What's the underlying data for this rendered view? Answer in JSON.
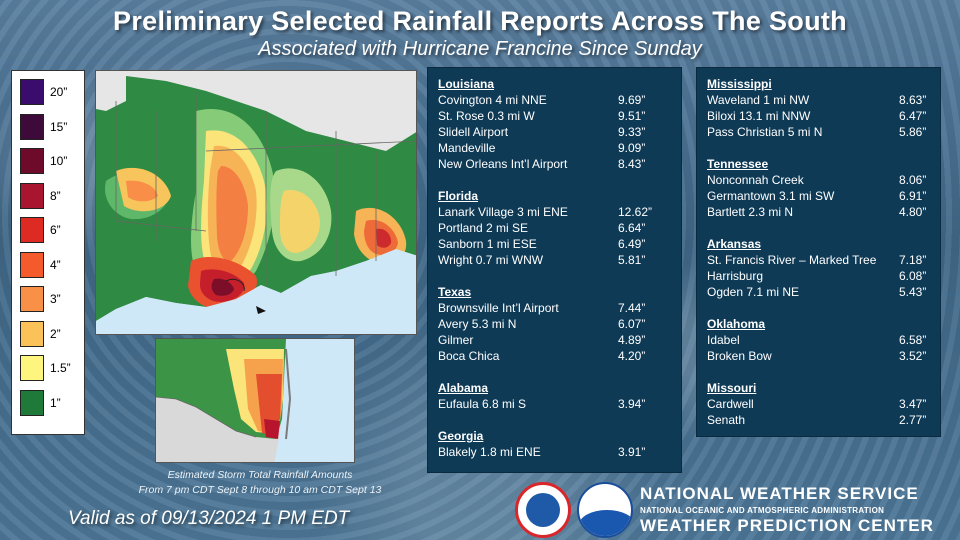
{
  "title": "Preliminary Selected Rainfall Reports Across The South",
  "subtitle": "Associated with Hurricane Francine Since Sunday",
  "legend": [
    {
      "label": "20”",
      "color": "#3a0c6e"
    },
    {
      "label": "15”",
      "color": "#3d0a3a"
    },
    {
      "label": "10”",
      "color": "#6e0b2a"
    },
    {
      "label": "8”",
      "color": "#a9142f"
    },
    {
      "label": "6”",
      "color": "#dd2a22"
    },
    {
      "label": "4”",
      "color": "#f55a2c"
    },
    {
      "label": "3”",
      "color": "#f89048"
    },
    {
      "label": "2”",
      "color": "#fbc25a"
    },
    {
      "label": "1.5”",
      "color": "#fdf57e"
    },
    {
      "label": "1”",
      "color": "#1f7a3a"
    }
  ],
  "caption": {
    "line1": "Estimated Storm Total Rainfall Amounts",
    "line2": "From 7 pm CDT Sept 8 through 10 am CDT Sept 13"
  },
  "valid": "Valid as of 09/13/2024  1 PM EDT",
  "left_panel": [
    {
      "state": "Louisiana",
      "rows": [
        {
          "site": "Covington 4 mi NNE",
          "value": "9.69”"
        },
        {
          "site": "St. Rose 0.3 mi W",
          "value": "9.51”"
        },
        {
          "site": "Slidell Airport",
          "value": "9.33”"
        },
        {
          "site": "Mandeville",
          "value": "9.09”"
        },
        {
          "site": "New Orleans Int’l Airport",
          "value": "8.43”"
        }
      ]
    },
    {
      "state": "Florida",
      "rows": [
        {
          "site": "Lanark Village 3 mi ENE",
          "value": "12.62”"
        },
        {
          "site": "Portland 2 mi SE",
          "value": "6.64”"
        },
        {
          "site": "Sanborn 1 mi ESE",
          "value": "6.49”"
        },
        {
          "site": "Wright 0.7 mi WNW",
          "value": "5.81”"
        }
      ]
    },
    {
      "state": "Texas",
      "rows": [
        {
          "site": "Brownsville Int’l Airport",
          "value": "7.44”"
        },
        {
          "site": "Avery 5.3 mi N",
          "value": "6.07”"
        },
        {
          "site": "Gilmer",
          "value": "4.89”"
        },
        {
          "site": "Boca Chica",
          "value": "4.20”"
        }
      ]
    },
    {
      "state": "Alabama",
      "rows": [
        {
          "site": "Eufaula 6.8 mi S",
          "value": "3.94”"
        }
      ]
    },
    {
      "state": "Georgia",
      "rows": [
        {
          "site": "Blakely 1.8 mi ENE",
          "value": "3.91”"
        }
      ]
    }
  ],
  "right_panel": [
    {
      "state": "Mississippi",
      "rows": [
        {
          "site": "Waveland 1 mi NW",
          "value": "8.63”"
        },
        {
          "site": "Biloxi 13.1 mi NNW",
          "value": "6.47”"
        },
        {
          "site": "Pass Christian 5 mi N",
          "value": "5.86”"
        }
      ]
    },
    {
      "state": "Tennessee",
      "rows": [
        {
          "site": "Nonconnah Creek",
          "value": "8.06”"
        },
        {
          "site": "Germantown 3.1 mi SW",
          "value": "6.91”"
        },
        {
          "site": "Bartlett 2.3 mi N",
          "value": "4.80”"
        }
      ]
    },
    {
      "state": "Arkansas",
      "rows": [
        {
          "site": "St. Francis River – Marked Tree",
          "value": "7.18”"
        },
        {
          "site": "Harrisburg",
          "value": "6.08”"
        },
        {
          "site": "Ogden 7.1 mi NE",
          "value": "5.43”"
        }
      ]
    },
    {
      "state": "Oklahoma",
      "rows": [
        {
          "site": "Idabel",
          "value": "6.58”"
        },
        {
          "site": "Broken Bow",
          "value": "3.52”"
        }
      ]
    },
    {
      "state": "Missouri",
      "rows": [
        {
          "site": "Cardwell",
          "value": "3.47”"
        },
        {
          "site": "Senath",
          "value": "2.77”"
        }
      ]
    }
  ],
  "agency": {
    "line1": "NATIONAL WEATHER SERVICE",
    "line2": "NATIONAL OCEANIC AND ATMOSPHERIC ADMINISTRATION",
    "line3": "WEATHER PREDICTION CENTER"
  },
  "icons": {
    "nws_logo": "nws-logo-icon",
    "noaa_logo": "noaa-logo-icon"
  }
}
